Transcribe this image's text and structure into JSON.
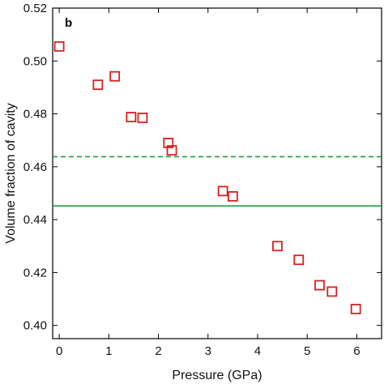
{
  "chart_data": {
    "type": "scatter",
    "panel_label": "b",
    "xlabel": "Pressure (GPa)",
    "ylabel": "Volume fraction of cavity",
    "xlim": [
      0,
      6.5
    ],
    "ylim": [
      0.395,
      0.52
    ],
    "xticks": [
      0,
      1,
      2,
      3,
      4,
      5,
      6
    ],
    "xtick_labels": [
      "0",
      "1",
      "2",
      "3",
      "4",
      "5",
      "6"
    ],
    "yticks": [
      0.4,
      0.42,
      0.44,
      0.46,
      0.48,
      0.5,
      0.52
    ],
    "ytick_labels": [
      "0.40",
      "0.42",
      "0.44",
      "0.46",
      "0.48",
      "0.50",
      "0.52"
    ],
    "grid": false,
    "series": [
      {
        "marker": "open-square",
        "color": "#d62020",
        "points": [
          {
            "x": 0.0,
            "y": 0.5055
          },
          {
            "x": 0.78,
            "y": 0.491
          },
          {
            "x": 1.12,
            "y": 0.4942
          },
          {
            "x": 1.45,
            "y": 0.4788
          },
          {
            "x": 1.68,
            "y": 0.4785
          },
          {
            "x": 2.2,
            "y": 0.469
          },
          {
            "x": 2.27,
            "y": 0.4662
          },
          {
            "x": 3.3,
            "y": 0.4508
          },
          {
            "x": 3.5,
            "y": 0.4488
          },
          {
            "x": 4.4,
            "y": 0.43
          },
          {
            "x": 4.83,
            "y": 0.4248
          },
          {
            "x": 5.25,
            "y": 0.4152
          },
          {
            "x": 5.5,
            "y": 0.4128
          },
          {
            "x": 5.98,
            "y": 0.4062
          }
        ]
      }
    ],
    "reference_lines": [
      {
        "y": 0.4638,
        "style": "dashed",
        "color": "#1f9e3a"
      },
      {
        "y": 0.4452,
        "style": "solid",
        "color": "#1f9e3a"
      }
    ]
  }
}
